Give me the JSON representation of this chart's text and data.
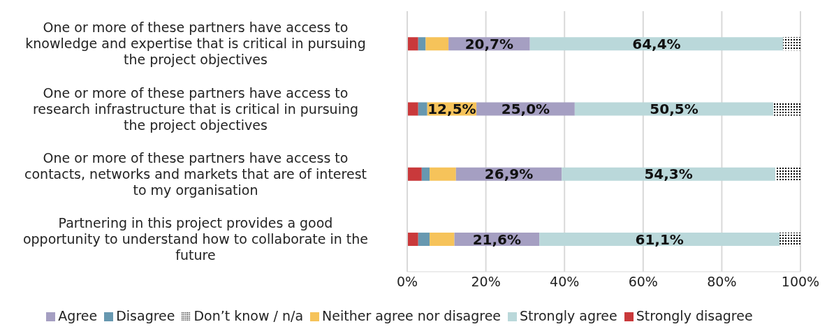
{
  "chart_data": {
    "type": "bar",
    "orientation": "horizontal",
    "stacked": true,
    "categories": [
      "One or more of these partners have access to knowledge and expertise that is critical in pursuing the project objectives",
      "One or more of these partners have access to research infrastructure that is critical in pursuing the project objectives",
      "One or more of these partners have access to contacts, networks and markets that are of interest to my organisation",
      "Partnering in this project provides a good opportunity to understand how to collaborate in the future"
    ],
    "series": [
      {
        "name": "Strongly disagree",
        "color": "#c9393b",
        "values": [
          2.8,
          2.8,
          3.7,
          2.8
        ]
      },
      {
        "name": "Disagree",
        "color": "#6798b0",
        "values": [
          1.9,
          2.3,
          2.0,
          2.9
        ]
      },
      {
        "name": "Neither agree nor disagree",
        "color": "#f6c35a",
        "values": [
          5.8,
          12.5,
          6.7,
          6.3
        ],
        "value_labels": [
          null,
          "12,5%",
          null,
          null
        ]
      },
      {
        "name": "Agree",
        "color": "#a59fc2",
        "values": [
          20.7,
          25.0,
          26.9,
          21.6
        ],
        "value_labels": [
          "20,7%",
          "25,0%",
          "26,9%",
          "21,6%"
        ]
      },
      {
        "name": "Strongly agree",
        "color": "#bad8da",
        "values": [
          64.4,
          50.5,
          54.3,
          61.1
        ],
        "value_labels": [
          "64,4%",
          "50,5%",
          "54,3%",
          "61,1%"
        ]
      },
      {
        "name": "Don’t know / n/a",
        "color": "#000000",
        "values": [
          4.4,
          6.9,
          6.4,
          5.3
        ]
      }
    ],
    "xlim": [
      0,
      100
    ],
    "xticks": [
      {
        "value": 0,
        "label": "0%"
      },
      {
        "value": 20,
        "label": "20%"
      },
      {
        "value": 40,
        "label": "40%"
      },
      {
        "value": 60,
        "label": "60%"
      },
      {
        "value": 80,
        "label": "80%"
      },
      {
        "value": 100,
        "label": "100%"
      }
    ],
    "grid": "x",
    "legend": "bottom"
  }
}
